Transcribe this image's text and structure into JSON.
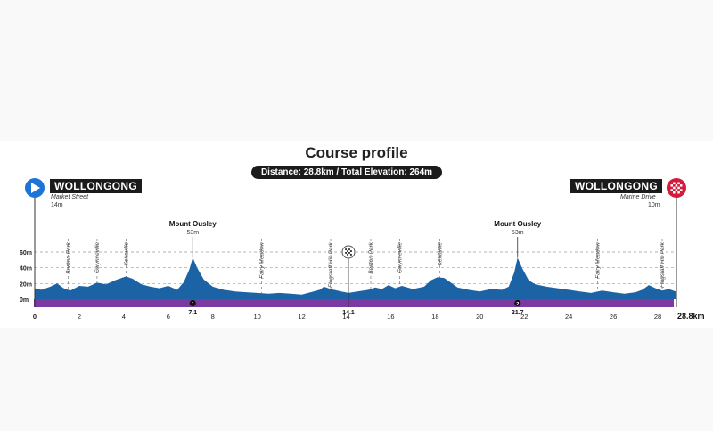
{
  "colors": {
    "accent_blue": "#1d74d6",
    "terrain": "#1c63a6",
    "road_band": "#7a3aa1",
    "finish_red": "#d31b3b"
  },
  "header": {
    "title": "Course profile",
    "subtitle": "Distance: 28.8km / Total Elevation: 264m"
  },
  "start": {
    "name": "WOLLONGONG",
    "street": "Market Street",
    "altitude": "14m",
    "icon": "play-icon"
  },
  "finish": {
    "name": "WOLLONGONG",
    "street": "Marine Drive",
    "altitude": "10m",
    "icon": "checkered-flag-icon"
  },
  "climbs": [
    {
      "name": "Mount Ousley",
      "altitude": "53m",
      "km": 7.1,
      "marker": "1",
      "km_label": "7.1"
    },
    {
      "name": "Mount Ousley",
      "altitude": "53m",
      "km": 21.7,
      "marker": "2",
      "km_label": "21.7"
    }
  ],
  "midpoint": {
    "km": 14.1,
    "km_label": "14.1",
    "icon": "checkered-flag-icon"
  },
  "landmarks": [
    {
      "name": "Beaton Park",
      "km": 1.5
    },
    {
      "name": "Gwynneville",
      "km": 2.8
    },
    {
      "name": "Keiraville",
      "km": 4.1
    },
    {
      "name": "Fairy Meadow",
      "km": 10.2
    },
    {
      "name": "Flagstaff Hill Park",
      "km": 13.3
    },
    {
      "name": "Beaton Park",
      "km": 15.1
    },
    {
      "name": "Gwynneville",
      "km": 16.4
    },
    {
      "name": "Keiraville",
      "km": 18.2
    },
    {
      "name": "Fairy Meadow",
      "km": 25.3
    },
    {
      "name": "Flagstaff Hill Park",
      "km": 28.2
    }
  ],
  "chart_data": {
    "type": "area",
    "xlabel": "",
    "ylabel": "",
    "x_ticks": [
      "0",
      "2",
      "4",
      "6",
      "8",
      "10",
      "12",
      "14",
      "16",
      "18",
      "20",
      "22",
      "24",
      "26",
      "28"
    ],
    "x_tick_values": [
      0,
      2,
      4,
      6,
      8,
      10,
      12,
      14,
      16,
      18,
      20,
      22,
      24,
      26,
      28
    ],
    "x_end_label": "28.8km",
    "y_ticks": [
      "0m",
      "20m",
      "40m",
      "60m"
    ],
    "y_tick_values": [
      0,
      20,
      40,
      60
    ],
    "xlim": [
      0,
      28.8
    ],
    "ylim": [
      0,
      60
    ],
    "grid": true,
    "series": [
      {
        "x": [
          0,
          0.3,
          0.7,
          1.0,
          1.3,
          1.6,
          2.0,
          2.4,
          2.8,
          3.2,
          3.6,
          3.8,
          4.1,
          4.4,
          4.8,
          5.2,
          5.6,
          6.0,
          6.4,
          6.7,
          6.95,
          7.1,
          7.3,
          7.6,
          8.0,
          8.5,
          9.0,
          9.5,
          10.0,
          10.5,
          11.0,
          11.5,
          12.0,
          12.4,
          12.8,
          13.0,
          13.3,
          13.6,
          14.1,
          14.5,
          15.0,
          15.3,
          15.6,
          15.9,
          16.2,
          16.5,
          17.0,
          17.5,
          17.8,
          18.1,
          18.4,
          18.7,
          19.0,
          19.5,
          20.0,
          20.5,
          21.0,
          21.3,
          21.55,
          21.7,
          21.9,
          22.2,
          22.5,
          23.0,
          23.5,
          24.0,
          24.5,
          25.0,
          25.5,
          26.0,
          26.5,
          27.0,
          27.3,
          27.6,
          27.9,
          28.2,
          28.5,
          28.8
        ],
        "y": [
          14,
          12,
          16,
          20,
          14,
          11,
          17,
          16,
          21,
          19,
          24,
          26,
          29,
          26,
          19,
          16,
          14,
          17,
          12,
          22,
          38,
          53,
          40,
          25,
          16,
          12,
          10,
          9,
          8,
          7,
          8,
          7,
          6,
          9,
          12,
          16,
          13,
          11,
          8,
          10,
          12,
          15,
          13,
          18,
          14,
          17,
          13,
          16,
          24,
          28,
          27,
          21,
          15,
          12,
          10,
          13,
          12,
          16,
          34,
          53,
          40,
          24,
          19,
          16,
          14,
          12,
          10,
          8,
          11,
          9,
          7,
          9,
          12,
          18,
          14,
          11,
          13,
          10
        ]
      }
    ]
  }
}
